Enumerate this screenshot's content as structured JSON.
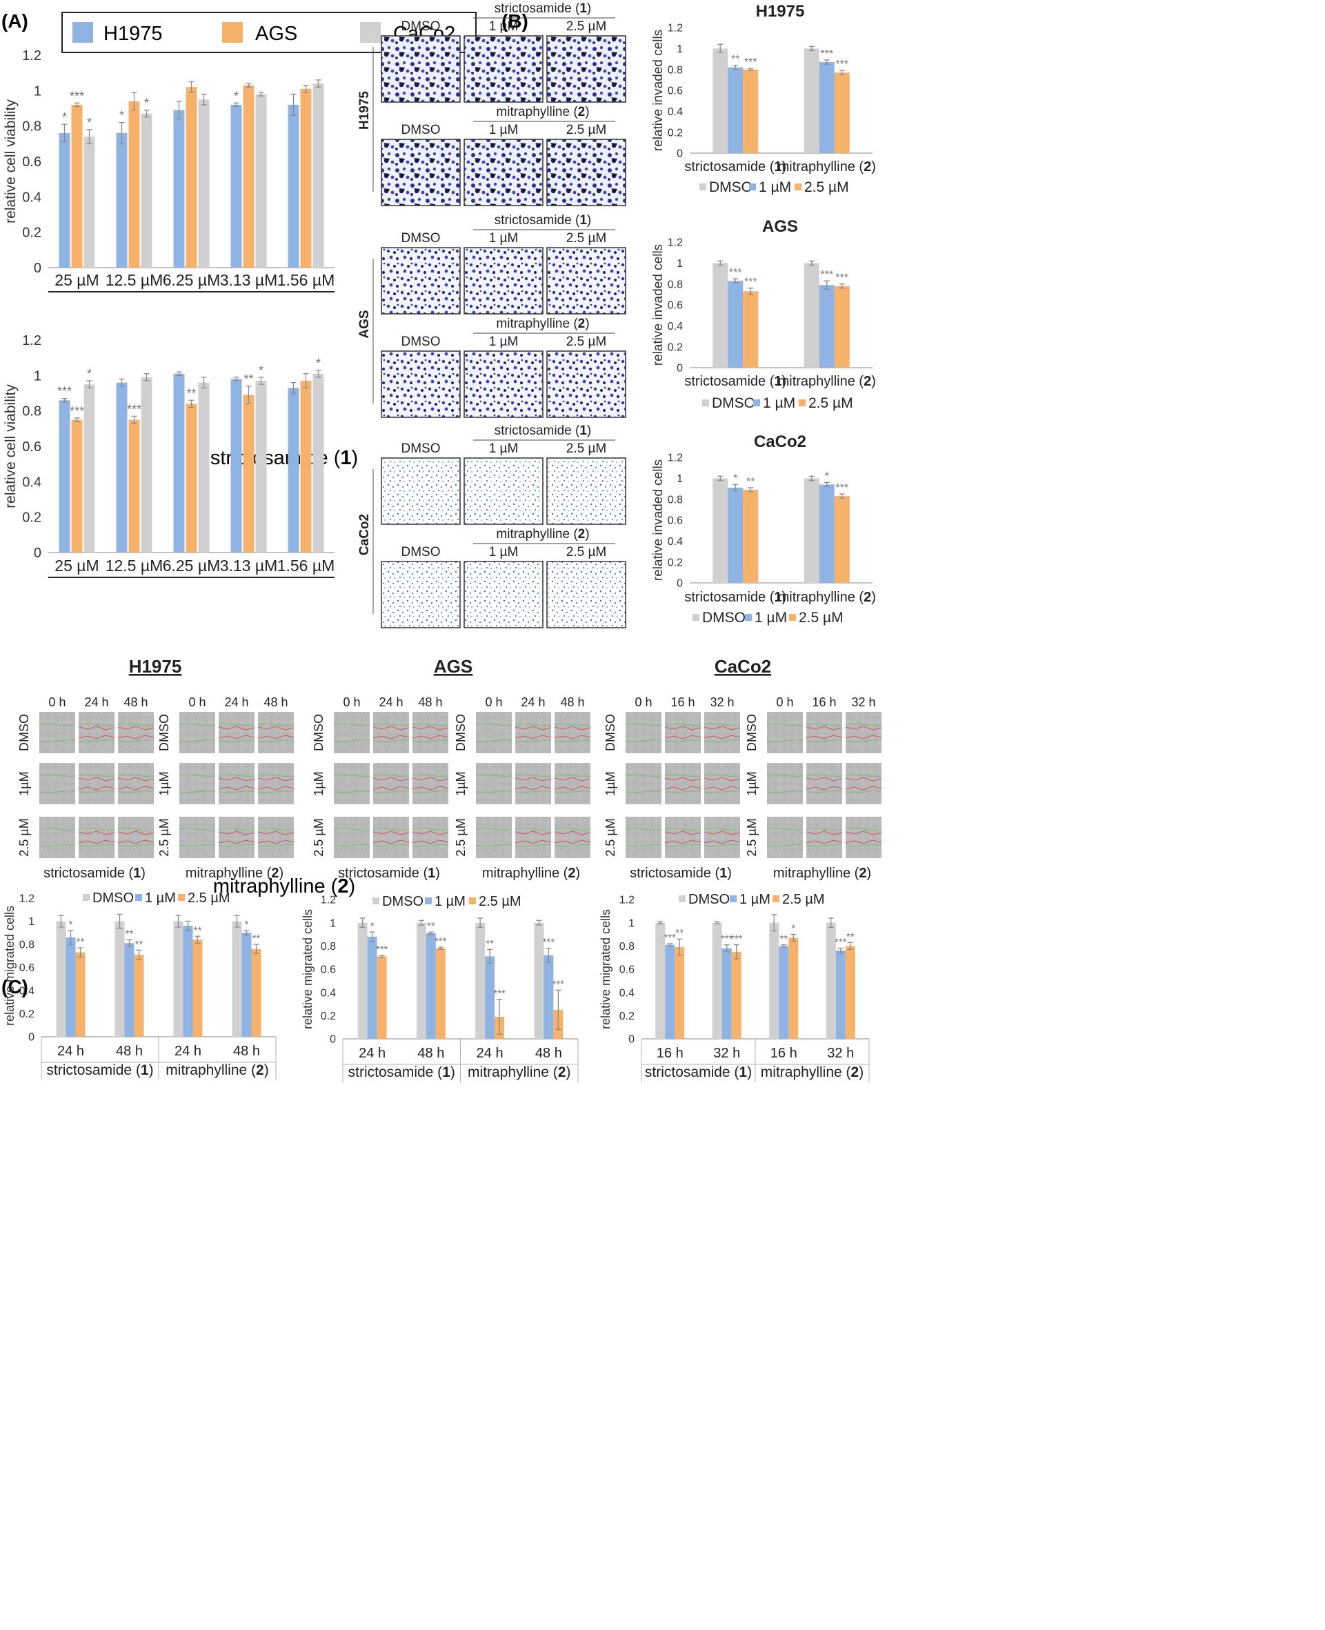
{
  "colors": {
    "h1975": "#8FB4E3",
    "ags": "#F6B26B",
    "caco2": "#D0D0D0",
    "dmso": "#D0D0D0",
    "um1": "#8FB4E3",
    "um25": "#F6B26B",
    "axis": "#B0B0B0",
    "text": "#222222",
    "err": "#8A8A8A",
    "star": "#777777"
  },
  "panels": {
    "a": "(A)",
    "b": "(B)",
    "c": "(C)"
  },
  "legend_a": [
    "H1975",
    "AGS",
    "CaCo2"
  ],
  "compounds": {
    "s_name": "strictosamide",
    "s_num": "1",
    "m_name": "mitraphylline",
    "m_num": "2"
  },
  "images_b": {
    "col_labels": [
      "DMSO",
      "1 µM",
      "2.5 µM"
    ],
    "row_labels": [
      "H1975",
      "AGS",
      "CaCo2"
    ]
  },
  "images_c": [
    {
      "title": "H1975",
      "times": [
        "0 h",
        "24 h",
        "48 h"
      ]
    },
    {
      "title": "AGS",
      "times": [
        "0 h",
        "24 h",
        "48 h"
      ]
    },
    {
      "title": "CaCo2",
      "times": [
        "0 h",
        "16 h",
        "32 h"
      ]
    }
  ],
  "row_labels_c": [
    "DMSO",
    "1µM",
    "2.5 µM"
  ],
  "chart_data": [
    {
      "id": "A1",
      "type": "bar",
      "ylabel": "relative cell viability",
      "ylim": [
        0,
        1.2
      ],
      "yticks": [
        0,
        0.2,
        0.4,
        0.6,
        0.8,
        1,
        1.2
      ],
      "xlabel": "strictosamide (1)",
      "categories": [
        "25 µM",
        "12.5 µM",
        "6.25 µM",
        "3.13 µM",
        "1.56 µM"
      ],
      "series": [
        {
          "name": "H1975",
          "color": "h1975",
          "values": [
            0.76,
            0.76,
            0.89,
            0.92,
            0.92
          ],
          "err": [
            0.05,
            0.06,
            0.05,
            0.01,
            0.06
          ],
          "stars": [
            "*",
            "*",
            "",
            "*",
            ""
          ]
        },
        {
          "name": "AGS",
          "color": "ags",
          "values": [
            0.92,
            0.94,
            1.02,
            1.03,
            1.01
          ],
          "err": [
            0.01,
            0.05,
            0.03,
            0.01,
            0.02
          ],
          "stars": [
            "***",
            "",
            "",
            "",
            ""
          ]
        },
        {
          "name": "CaCo2",
          "color": "caco2",
          "values": [
            0.74,
            0.87,
            0.95,
            0.98,
            1.04
          ],
          "err": [
            0.04,
            0.02,
            0.03,
            0.01,
            0.02
          ],
          "stars": [
            "*",
            "*",
            "",
            "",
            ""
          ]
        }
      ]
    },
    {
      "id": "A2",
      "type": "bar",
      "ylabel": "relative cell viability",
      "ylim": [
        0,
        1.2
      ],
      "yticks": [
        0,
        0.2,
        0.4,
        0.6,
        0.8,
        1,
        1.2
      ],
      "xlabel": "mitraphylline (2)",
      "categories": [
        "25 µM",
        "12.5 µM",
        "6.25 µM",
        "3.13 µM",
        "1.56 µM"
      ],
      "series": [
        {
          "name": "H1975",
          "color": "h1975",
          "values": [
            0.86,
            0.96,
            1.01,
            0.98,
            0.93
          ],
          "err": [
            0.01,
            0.02,
            0.01,
            0.01,
            0.03
          ],
          "stars": [
            "***",
            "",
            "",
            "",
            ""
          ]
        },
        {
          "name": "AGS",
          "color": "ags",
          "values": [
            0.75,
            0.75,
            0.84,
            0.89,
            0.97
          ],
          "err": [
            0.01,
            0.02,
            0.02,
            0.05,
            0.04
          ],
          "stars": [
            "***",
            "***",
            "**",
            "**",
            ""
          ]
        },
        {
          "name": "CaCo2",
          "color": "caco2",
          "values": [
            0.95,
            0.99,
            0.96,
            0.97,
            1.01
          ],
          "err": [
            0.02,
            0.02,
            0.03,
            0.02,
            0.02
          ],
          "stars": [
            "*",
            "",
            "",
            "*",
            "*"
          ]
        }
      ]
    },
    {
      "id": "B1",
      "type": "bar",
      "title": "H1975",
      "ylabel": "relative invaded cells",
      "ylim": [
        0,
        1.2
      ],
      "yticks": [
        0,
        0.2,
        0.4,
        0.6,
        0.8,
        1,
        1.2
      ],
      "categories": [
        "strictosamide (1)",
        "mitraphylline (2)"
      ],
      "legend": [
        "DMSO",
        "1 µM",
        "2.5 µM"
      ],
      "series": [
        {
          "name": "DMSO",
          "color": "dmso",
          "values": [
            1.0,
            1.0
          ],
          "err": [
            0.04,
            0.02
          ],
          "stars": [
            "",
            ""
          ]
        },
        {
          "name": "1 µM",
          "color": "um1",
          "values": [
            0.82,
            0.87
          ],
          "err": [
            0.02,
            0.02
          ],
          "stars": [
            "**",
            "***"
          ]
        },
        {
          "name": "2.5 µM",
          "color": "um25",
          "values": [
            0.8,
            0.77
          ],
          "err": [
            0.01,
            0.02
          ],
          "stars": [
            "***",
            "***"
          ]
        }
      ]
    },
    {
      "id": "B2",
      "type": "bar",
      "title": "AGS",
      "ylabel": "relative invaded cells",
      "ylim": [
        0,
        1.2
      ],
      "yticks": [
        0,
        0.2,
        0.4,
        0.6,
        0.8,
        1,
        1.2
      ],
      "categories": [
        "strictosamide (1)",
        "mitraphylline (2)"
      ],
      "legend": [
        "DMSO",
        "1 µM",
        "2.5 µM"
      ],
      "series": [
        {
          "name": "DMSO",
          "color": "dmso",
          "values": [
            1.0,
            1.0
          ],
          "err": [
            0.02,
            0.02
          ],
          "stars": [
            "",
            ""
          ]
        },
        {
          "name": "1 µM",
          "color": "um1",
          "values": [
            0.83,
            0.79
          ],
          "err": [
            0.02,
            0.04
          ],
          "stars": [
            "***",
            "***"
          ]
        },
        {
          "name": "2.5 µM",
          "color": "um25",
          "values": [
            0.73,
            0.78
          ],
          "err": [
            0.03,
            0.02
          ],
          "stars": [
            "***",
            "***"
          ]
        }
      ]
    },
    {
      "id": "B3",
      "type": "bar",
      "title": "CaCo2",
      "ylabel": "relative invaded cells",
      "ylim": [
        0,
        1.2
      ],
      "yticks": [
        0,
        0.2,
        0.4,
        0.6,
        0.8,
        1,
        1.2
      ],
      "categories": [
        "strictosamide (1)",
        "mitraphylline (2)"
      ],
      "legend": [
        "DMSO",
        "1 µM",
        "2.5 µM"
      ],
      "series": [
        {
          "name": "DMSO",
          "color": "dmso",
          "values": [
            1.0,
            1.0
          ],
          "err": [
            0.02,
            0.02
          ],
          "stars": [
            "",
            ""
          ]
        },
        {
          "name": "1 µM",
          "color": "um1",
          "values": [
            0.91,
            0.94
          ],
          "err": [
            0.03,
            0.02
          ],
          "stars": [
            "*",
            "*"
          ]
        },
        {
          "name": "2.5 µM",
          "color": "um25",
          "values": [
            0.89,
            0.83
          ],
          "err": [
            0.02,
            0.02
          ],
          "stars": [
            "**",
            "***"
          ]
        }
      ]
    },
    {
      "id": "C1",
      "type": "bar",
      "ylabel": "relative migrated cells",
      "ylim": [
        0,
        1.2
      ],
      "yticks": [
        0,
        0.2,
        0.4,
        0.6,
        0.8,
        1,
        1.2
      ],
      "categories": [
        "24 h",
        "48 h",
        "24 h",
        "48 h"
      ],
      "groups": [
        "strictosamide (1)",
        "mitraphylline (2)"
      ],
      "legend": [
        "DMSO",
        "1 µM",
        "2.5 µM"
      ],
      "series": [
        {
          "name": "DMSO",
          "color": "dmso",
          "values": [
            1.0,
            1.0,
            1.0,
            1.0
          ],
          "err": [
            0.05,
            0.06,
            0.05,
            0.05
          ],
          "stars": [
            "",
            "",
            "",
            ""
          ]
        },
        {
          "name": "1 µM",
          "color": "um1",
          "values": [
            0.86,
            0.81,
            0.96,
            0.9
          ],
          "err": [
            0.06,
            0.03,
            0.04,
            0.02
          ],
          "stars": [
            "*",
            "**",
            "",
            "*"
          ]
        },
        {
          "name": "2.5 µM",
          "color": "um25",
          "values": [
            0.73,
            0.71,
            0.84,
            0.76
          ],
          "err": [
            0.04,
            0.04,
            0.03,
            0.04
          ],
          "stars": [
            "**",
            "**",
            "**",
            "**"
          ]
        }
      ]
    },
    {
      "id": "C2",
      "type": "bar",
      "ylabel": "relative migrated cells",
      "ylim": [
        0,
        1.2
      ],
      "yticks": [
        0,
        0.2,
        0.4,
        0.6,
        0.8,
        1,
        1.2
      ],
      "categories": [
        "24 h",
        "48 h",
        "24 h",
        "48 h"
      ],
      "groups": [
        "strictosamide (1)",
        "mitraphylline (2)"
      ],
      "legend": [
        "DMSO",
        "1 µM",
        "2.5 µM"
      ],
      "series": [
        {
          "name": "DMSO",
          "color": "dmso",
          "values": [
            1.0,
            1.0,
            1.0,
            1.0
          ],
          "err": [
            0.04,
            0.02,
            0.04,
            0.02
          ],
          "stars": [
            "",
            "",
            "",
            ""
          ]
        },
        {
          "name": "1 µM",
          "color": "um1",
          "values": [
            0.88,
            0.91,
            0.71,
            0.72
          ],
          "err": [
            0.04,
            0.01,
            0.06,
            0.06
          ],
          "stars": [
            "*",
            "**",
            "**",
            "***"
          ]
        },
        {
          "name": "2.5 µM",
          "color": "um25",
          "values": [
            0.71,
            0.78,
            0.19,
            0.25
          ],
          "err": [
            0.01,
            0.01,
            0.15,
            0.17
          ],
          "stars": [
            "***",
            "***",
            "***",
            "***"
          ]
        }
      ]
    },
    {
      "id": "C3",
      "type": "bar",
      "ylabel": "relative migrated cells",
      "ylim": [
        0,
        1.2
      ],
      "yticks": [
        0,
        0.2,
        0.4,
        0.6,
        0.8,
        1,
        1.2
      ],
      "categories": [
        "16 h",
        "32 h",
        "16 h",
        "32 h"
      ],
      "groups": [
        "strictosamide (1)",
        "mitraphylline (2)"
      ],
      "legend": [
        "DMSO",
        "1 µM",
        "2.5 µM"
      ],
      "series": [
        {
          "name": "DMSO",
          "color": "dmso",
          "values": [
            1.0,
            1.0,
            1.0,
            1.0
          ],
          "err": [
            0.01,
            0.01,
            0.07,
            0.04
          ],
          "stars": [
            "",
            "",
            "",
            ""
          ]
        },
        {
          "name": "1 µM",
          "color": "um1",
          "values": [
            0.81,
            0.78,
            0.8,
            0.76
          ],
          "err": [
            0.01,
            0.03,
            0.01,
            0.02
          ],
          "stars": [
            "***",
            "***",
            "**",
            "***"
          ]
        },
        {
          "name": "2.5 µM",
          "color": "um25",
          "values": [
            0.79,
            0.75,
            0.87,
            0.8
          ],
          "err": [
            0.07,
            0.06,
            0.03,
            0.03
          ],
          "stars": [
            "**",
            "***",
            "*",
            "**"
          ]
        }
      ]
    }
  ]
}
